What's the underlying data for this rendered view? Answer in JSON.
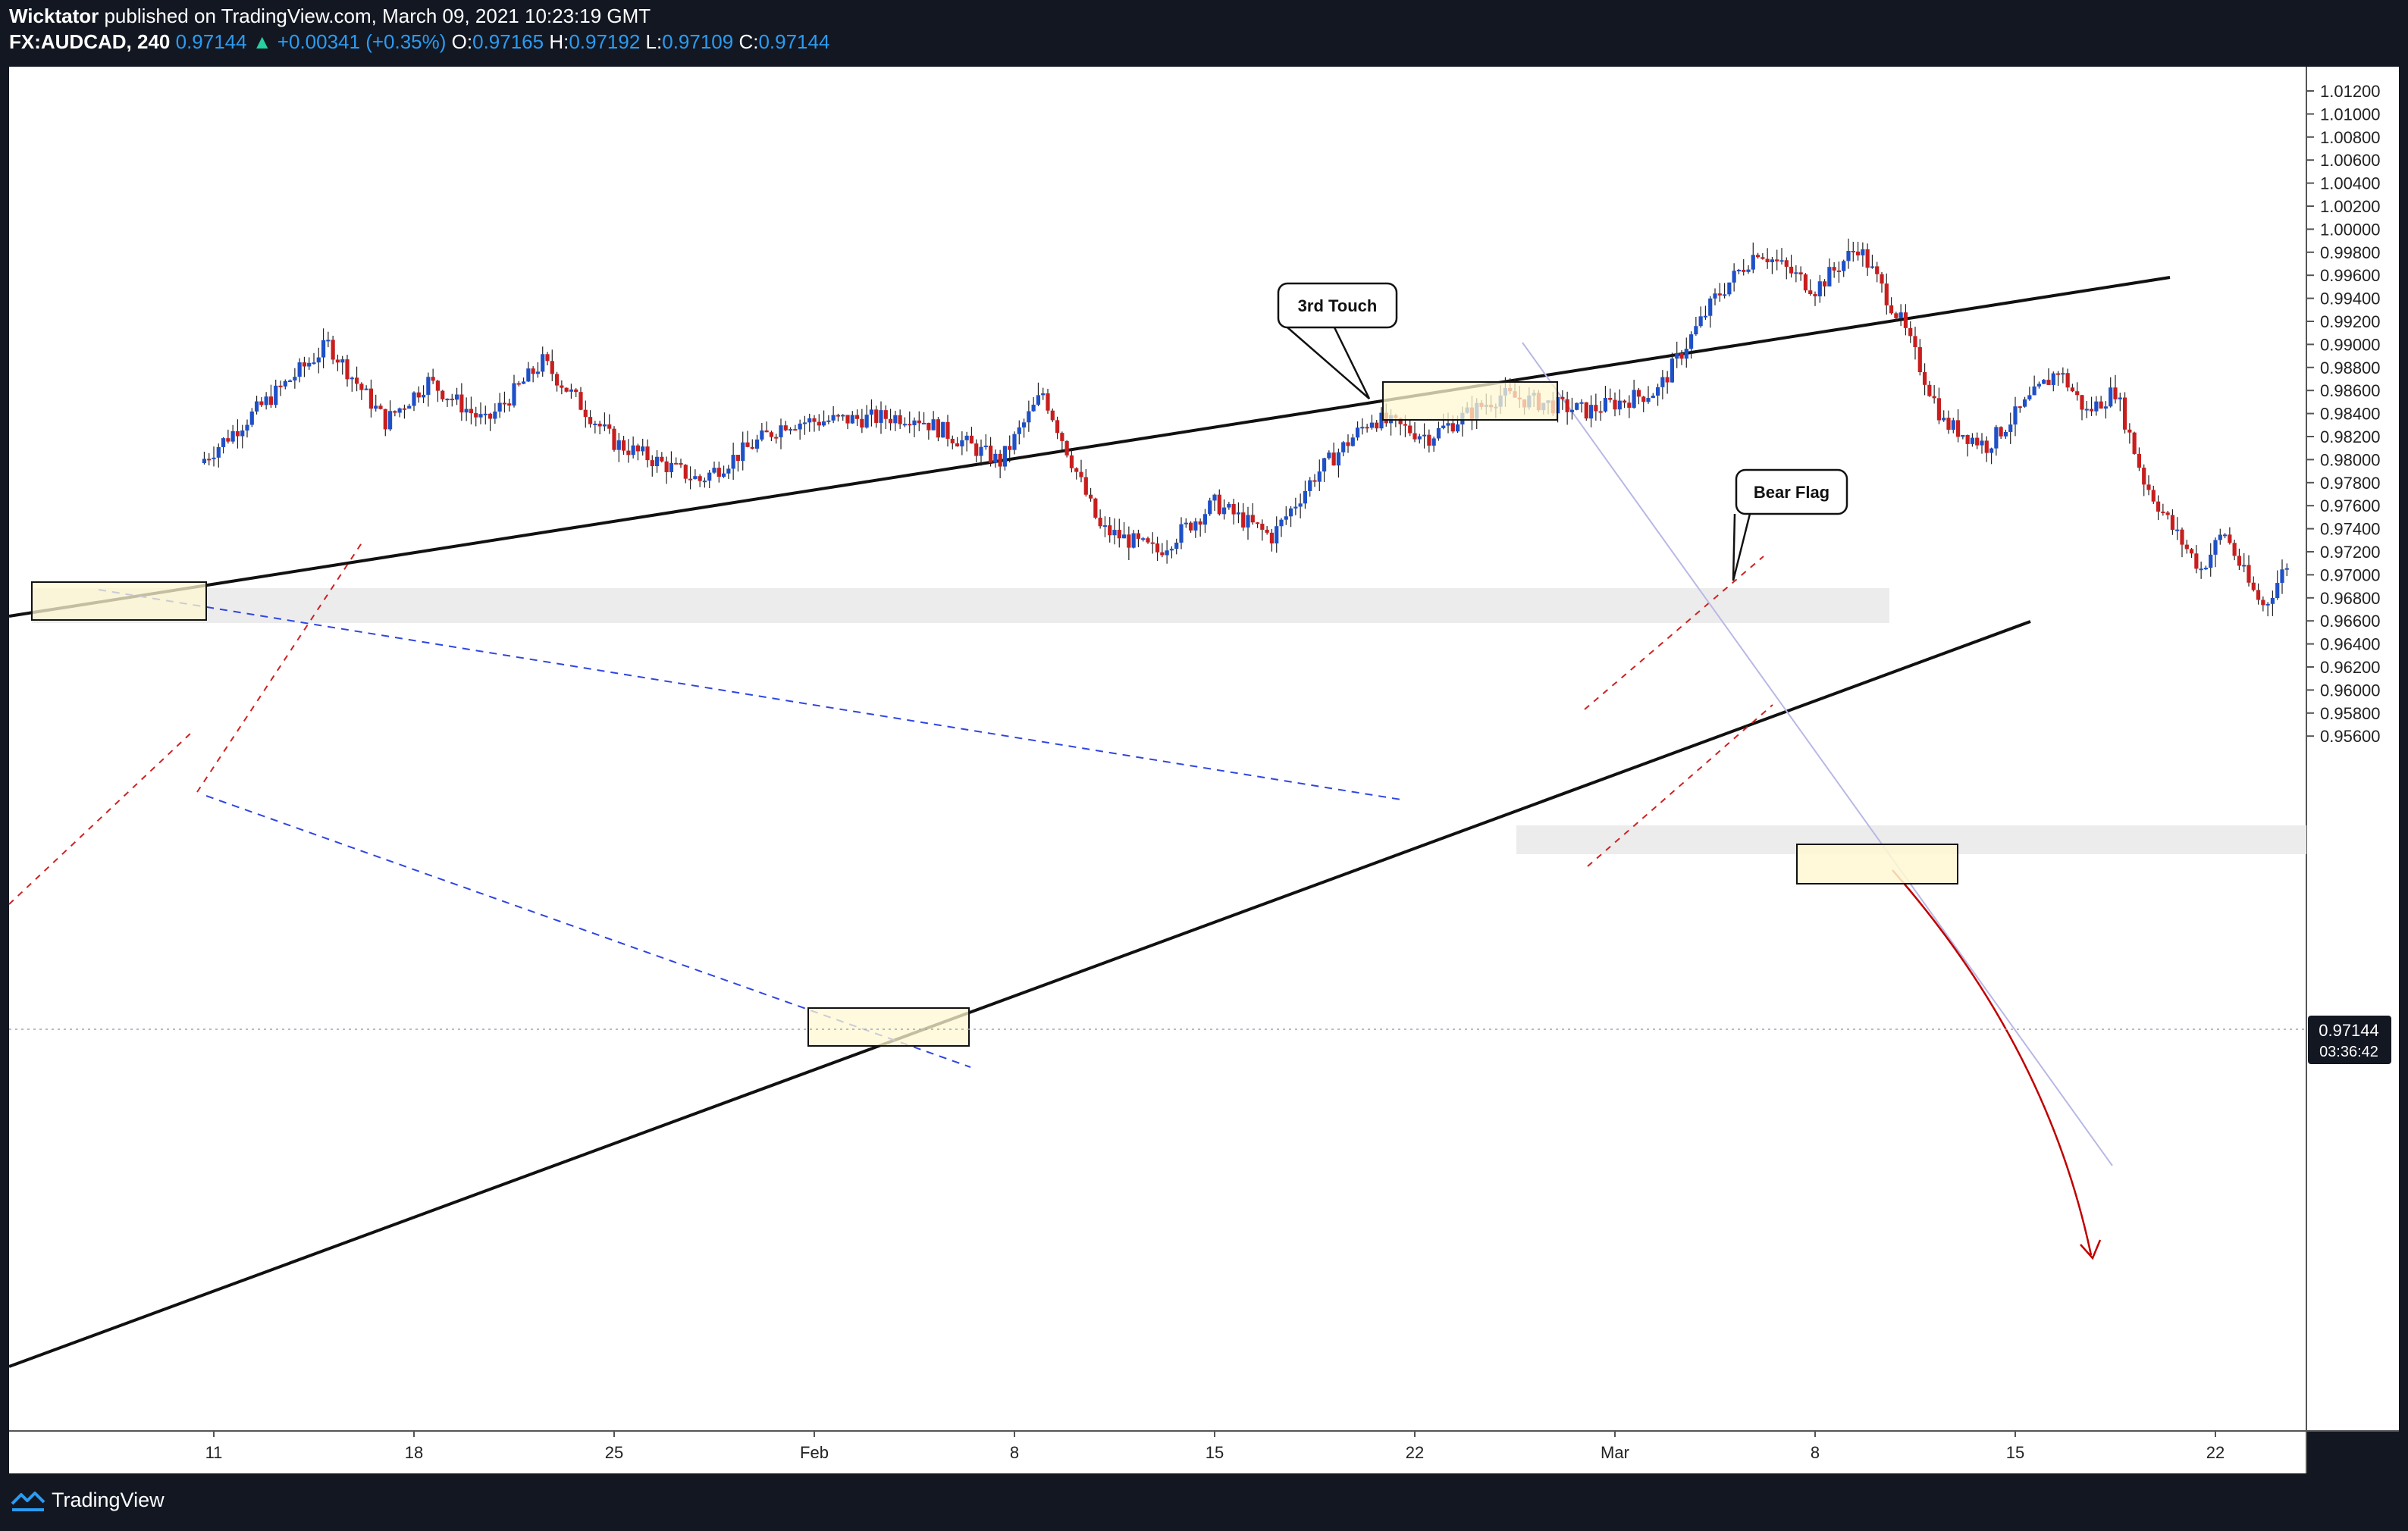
{
  "header": {
    "author": "Wicktator",
    "published_text": " published on TradingView.com, March 09, 2021 10:23:19 GMT",
    "symbol": "FX:AUDCAD, 240",
    "last": "0.97144",
    "change_arrow": "▲",
    "change": "+0.00341 (+0.35%)",
    "o_label": "O:",
    "o_value": "0.97165",
    "h_label": "H:",
    "h_value": "0.97192",
    "l_label": "L:",
    "l_value": "0.97109",
    "c_label": "C:",
    "c_value": "0.97144"
  },
  "footer": {
    "brand": "TradingView",
    "logo_icon": "tradingview-logo-icon"
  },
  "colors": {
    "background": "#131722",
    "chart_bg": "#ffffff",
    "bull": "#1e50c8",
    "bear": "#c81e1e",
    "annotation_box": "#fff8d2"
  },
  "chart_data": {
    "type": "candlestick",
    "symbol": "FX:AUDCAD",
    "timeframe": "240",
    "y_ticks": [
      "1.01200",
      "1.01000",
      "1.00800",
      "1.00600",
      "1.00400",
      "1.00200",
      "1.00000",
      "0.99800",
      "0.99600",
      "0.99400",
      "0.99200",
      "0.99000",
      "0.98800",
      "0.98600",
      "0.98400",
      "0.98200",
      "0.98000",
      "0.97800",
      "0.97600",
      "0.97400",
      "0.97200",
      "0.97000",
      "0.96800",
      "0.96600",
      "0.96400",
      "0.96200",
      "0.96000",
      "0.95800",
      "0.95600"
    ],
    "ylim": [
      0.9532,
      1.0143
    ],
    "x_ticks": [
      "11",
      "18",
      "25",
      "Feb",
      "8",
      "15",
      "22",
      "Mar",
      "8",
      "15",
      "22"
    ],
    "current_price": "0.97144",
    "countdown": "03:36:42",
    "price_path": [
      {
        "day": -0.5,
        "price": 0.9797
      },
      {
        "day": 4.0,
        "price": 0.99
      },
      {
        "day": 6.0,
        "price": 0.9833
      },
      {
        "day": 7.5,
        "price": 0.9868
      },
      {
        "day": 9.5,
        "price": 0.9832
      },
      {
        "day": 11.5,
        "price": 0.9885
      },
      {
        "day": 14.0,
        "price": 0.9815
      },
      {
        "day": 17.0,
        "price": 0.9782
      },
      {
        "day": 20.0,
        "price": 0.9832
      },
      {
        "day": 24.5,
        "price": 0.9838
      },
      {
        "day": 27.5,
        "price": 0.9798
      },
      {
        "day": 29.0,
        "price": 0.9858
      },
      {
        "day": 31.0,
        "price": 0.974
      },
      {
        "day": 33.0,
        "price": 0.972
      },
      {
        "day": 35.0,
        "price": 0.9762
      },
      {
        "day": 37.0,
        "price": 0.9733
      },
      {
        "day": 38.5,
        "price": 0.9786
      },
      {
        "day": 40.5,
        "price": 0.9836
      },
      {
        "day": 42.5,
        "price": 0.982
      },
      {
        "day": 45.0,
        "price": 0.9856
      },
      {
        "day": 48.0,
        "price": 0.9842
      },
      {
        "day": 50.5,
        "price": 0.986
      },
      {
        "day": 52.5,
        "price": 0.994
      },
      {
        "day": 54.0,
        "price": 0.9982
      },
      {
        "day": 56.0,
        "price": 0.9948
      },
      {
        "day": 57.5,
        "price": 0.9985
      },
      {
        "day": 59.0,
        "price": 0.992
      },
      {
        "day": 60.5,
        "price": 0.9832
      },
      {
        "day": 62.0,
        "price": 0.9812
      },
      {
        "day": 64.5,
        "price": 0.9878
      },
      {
        "day": 65.5,
        "price": 0.9841
      },
      {
        "day": 66.5,
        "price": 0.986
      },
      {
        "day": 67.5,
        "price": 0.9782
      },
      {
        "day": 68.5,
        "price": 0.974
      },
      {
        "day": 69.5,
        "price": 0.9705
      },
      {
        "day": 70.3,
        "price": 0.9738
      },
      {
        "day": 71.2,
        "price": 0.969
      },
      {
        "day": 71.7,
        "price": 0.9672
      },
      {
        "day": 72.6,
        "price": 0.9714
      }
    ],
    "annotations": [
      {
        "type": "callout",
        "text": "3rd Touch"
      },
      {
        "type": "callout",
        "text": "Bear Flag"
      }
    ],
    "grid": false,
    "legend": "none"
  }
}
